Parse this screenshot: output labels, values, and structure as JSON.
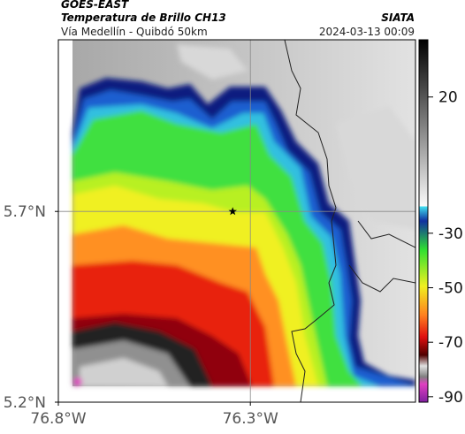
{
  "header": {
    "source": "GOES-EAST",
    "title": "Temperatura de Brillo CH13",
    "subtitle": "Vía Medellín - Quibdó 50km",
    "agency": "SIATA",
    "timestamp": "2024-03-13 00:09"
  },
  "map": {
    "lon_range": [
      -76.8,
      -75.87
    ],
    "lat_range": [
      5.2,
      6.15
    ],
    "xticks": [
      {
        "value": -76.8,
        "label": "76.8°W"
      },
      {
        "value": -76.3,
        "label": "76.3°W"
      }
    ],
    "yticks": [
      {
        "value": 5.2,
        "label": "5.2°N"
      },
      {
        "value": 5.7,
        "label": "5.7°N"
      }
    ],
    "grid": true,
    "marker": {
      "lon": -76.346,
      "lat": 5.7
    }
  },
  "colorbar": {
    "range": [
      -92,
      41
    ],
    "ticks": [
      20,
      -30,
      -50,
      -70,
      -90
    ]
  }
}
